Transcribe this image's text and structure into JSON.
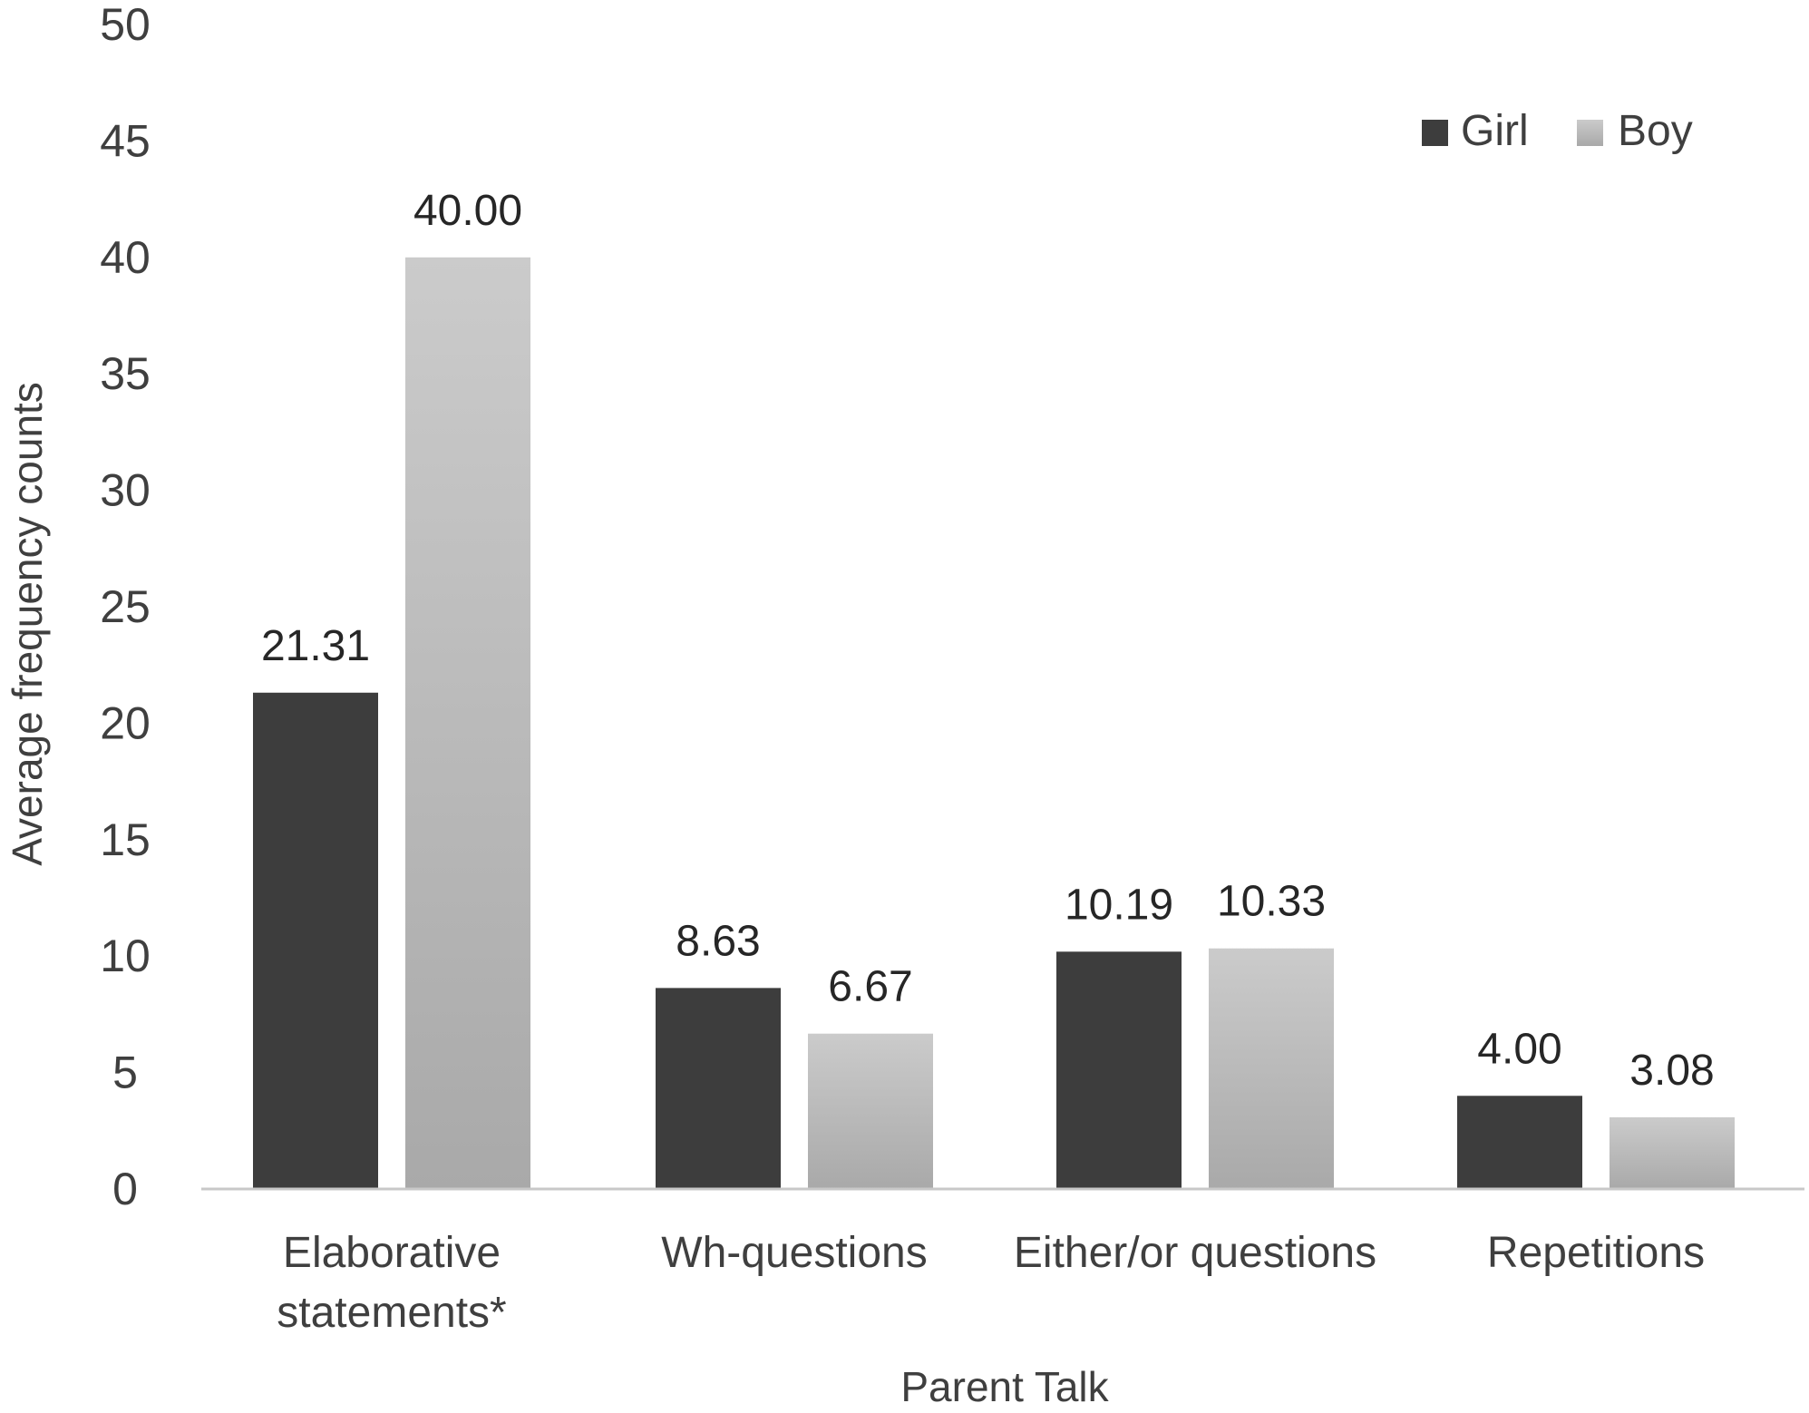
{
  "chart_data": {
    "type": "bar",
    "categories": [
      [
        "Elaborative",
        "statements*"
      ],
      [
        "Wh-questions"
      ],
      [
        "Either/or questions"
      ],
      [
        "Repetitions"
      ]
    ],
    "series": [
      {
        "name": "Girl",
        "values": [
          21.31,
          8.63,
          10.19,
          4.0
        ],
        "labels": [
          "21.31",
          "8.63",
          "10.19",
          "4.00"
        ],
        "color": "#3d3d3d"
      },
      {
        "name": "Boy",
        "values": [
          40.0,
          6.67,
          10.33,
          3.08
        ],
        "labels": [
          "40.00",
          "6.67",
          "10.33",
          "3.08"
        ],
        "color": "#c4c4c4"
      }
    ],
    "title": "",
    "xlabel": "Parent Talk",
    "ylabel": "Average frequency counts",
    "ylim": [
      0,
      50
    ],
    "yticks": [
      "0",
      "5",
      "10",
      "15",
      "20",
      "25",
      "30",
      "35",
      "40",
      "45",
      "50"
    ],
    "grid": false,
    "legend_position": "top-right"
  }
}
